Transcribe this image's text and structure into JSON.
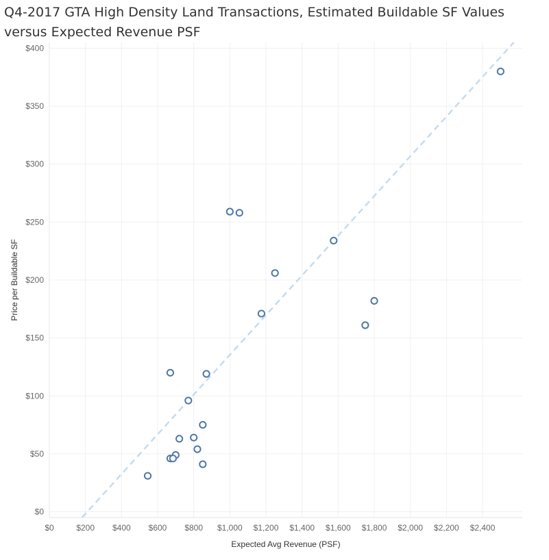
{
  "title": "Q4-2017 GTA High Density Land Transactions, Estimated Buildable SF Values versus Expected Revenue PSF",
  "chart_data": {
    "type": "scatter",
    "title": "Q4-2017 GTA High Density Land Transactions, Estimated Buildable SF Values versus Expected Revenue PSF",
    "xlabel": "Expected Avg Revenue (PSF)",
    "ylabel": "Price per Buildable SF",
    "xlim": [
      0,
      2620
    ],
    "ylim": [
      -5,
      405
    ],
    "x_ticks": [
      0,
      200,
      400,
      600,
      800,
      1000,
      1200,
      1400,
      1600,
      1800,
      2000,
      2200,
      2400
    ],
    "x_tick_labels": [
      "$0",
      "$200",
      "$400",
      "$600",
      "$800",
      "$1,000",
      "$1,200",
      "$1,400",
      "$1,600",
      "$1,800",
      "$2,000",
      "$2,200",
      "$2,400"
    ],
    "y_ticks": [
      0,
      50,
      100,
      150,
      200,
      250,
      300,
      350,
      400
    ],
    "y_tick_labels": [
      "$0",
      "$50",
      "$100",
      "$150",
      "$200",
      "$250",
      "$300",
      "$350",
      "$400"
    ],
    "grid": true,
    "trend_line": {
      "slope": 0.1714,
      "intercept": -36,
      "style": "dashed",
      "color": "#c6dbef"
    },
    "marker_color": "#4e79a7",
    "points": [
      {
        "x": 2500,
        "y": 380
      },
      {
        "x": 1000,
        "y": 259
      },
      {
        "x": 1053,
        "y": 258
      },
      {
        "x": 1575,
        "y": 234
      },
      {
        "x": 1250,
        "y": 206
      },
      {
        "x": 1800,
        "y": 182
      },
      {
        "x": 1175,
        "y": 171
      },
      {
        "x": 1750,
        "y": 161
      },
      {
        "x": 670,
        "y": 120
      },
      {
        "x": 870,
        "y": 119
      },
      {
        "x": 770,
        "y": 96
      },
      {
        "x": 850,
        "y": 75
      },
      {
        "x": 800,
        "y": 64
      },
      {
        "x": 720,
        "y": 63
      },
      {
        "x": 820,
        "y": 54
      },
      {
        "x": 700,
        "y": 49
      },
      {
        "x": 670,
        "y": 46
      },
      {
        "x": 685,
        "y": 46
      },
      {
        "x": 850,
        "y": 41
      },
      {
        "x": 545,
        "y": 31
      }
    ]
  }
}
